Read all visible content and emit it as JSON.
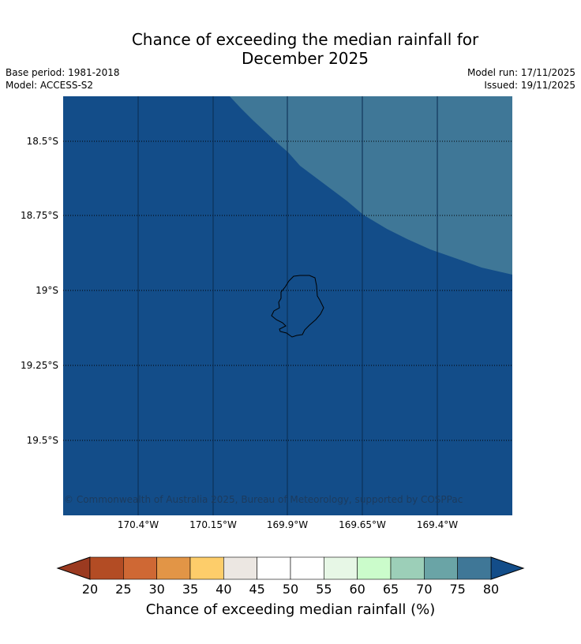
{
  "title_line1": "Chance of exceeding the median rainfall for",
  "title_line2": "December 2025",
  "meta_left": [
    "Base period: 1981-2018",
    "Model: ACCESS-S2"
  ],
  "meta_right": [
    "Model run: 17/11/2025",
    "Issued: 19/11/2025"
  ],
  "map": {
    "lon_ticks": [
      "170.4°W",
      "170.15°W",
      "169.9°W",
      "169.65°W",
      "169.4°W"
    ],
    "lat_ticks": [
      "18.5°S",
      "18.75°S",
      "19°S",
      "19.25°S",
      "19.5°S"
    ],
    "copyright": "© Commonwealth of Australia 2025, Bureau of Meteorology, supported by COSPPac",
    "region_colors": {
      "over_80": "#134d89",
      "75_80": "#3f7797"
    }
  },
  "colorbar": {
    "label": "Chance of exceeding median rainfall (%)",
    "ticks": [
      "20",
      "25",
      "30",
      "35",
      "40",
      "45",
      "50",
      "55",
      "60",
      "65",
      "70",
      "75",
      "80"
    ],
    "under_color": "#9b3a20",
    "over_color": "#134d89",
    "colors": [
      "#b34c24",
      "#cf6834",
      "#e29546",
      "#fdcd6a",
      "#ece7e2",
      "#ffffff",
      "#ffffff",
      "#e7f7e6",
      "#cbfccb",
      "#9ccfb8",
      "#6aa4a6",
      "#3f7797"
    ]
  }
}
